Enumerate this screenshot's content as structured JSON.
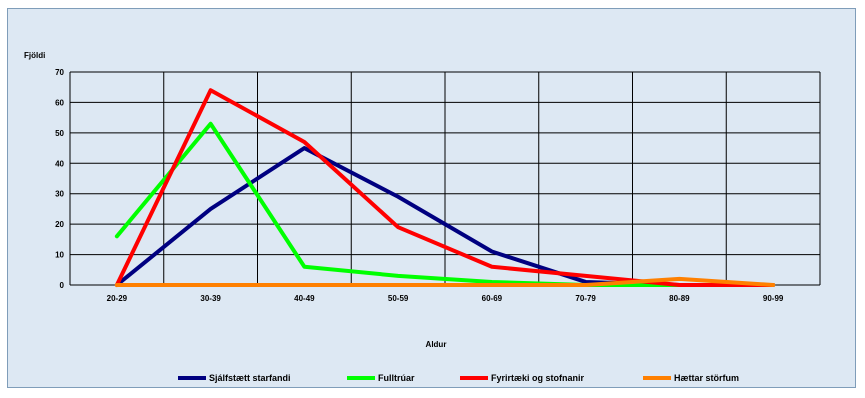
{
  "chart_data": {
    "type": "line",
    "title": "",
    "xlabel": "Aldur",
    "ylabel": "Fjöldi",
    "categories": [
      "20-29",
      "30-39",
      "40-49",
      "50-59",
      "60-69",
      "70-79",
      "80-89",
      "90-99"
    ],
    "ylim": [
      0,
      70
    ],
    "yticks": [
      0,
      10,
      20,
      30,
      40,
      50,
      60,
      70
    ],
    "grid": true,
    "legend_position": "bottom",
    "series": [
      {
        "name": "Sjálfstætt starfandi",
        "color": "#000080",
        "values": [
          0,
          25,
          45,
          29,
          11,
          1,
          0,
          0
        ]
      },
      {
        "name": "Fulltrúar",
        "color": "#00ff00",
        "values": [
          16,
          53,
          6,
          3,
          1,
          0,
          0,
          0
        ]
      },
      {
        "name": "Fyrirtæki og stofnanir",
        "color": "#ff0000",
        "values": [
          0,
          64,
          47,
          19,
          6,
          3,
          0,
          0
        ]
      },
      {
        "name": "Hættar störfum",
        "color": "#ff8000",
        "values": [
          0,
          0,
          0,
          0,
          0,
          0,
          2,
          0
        ]
      }
    ]
  }
}
